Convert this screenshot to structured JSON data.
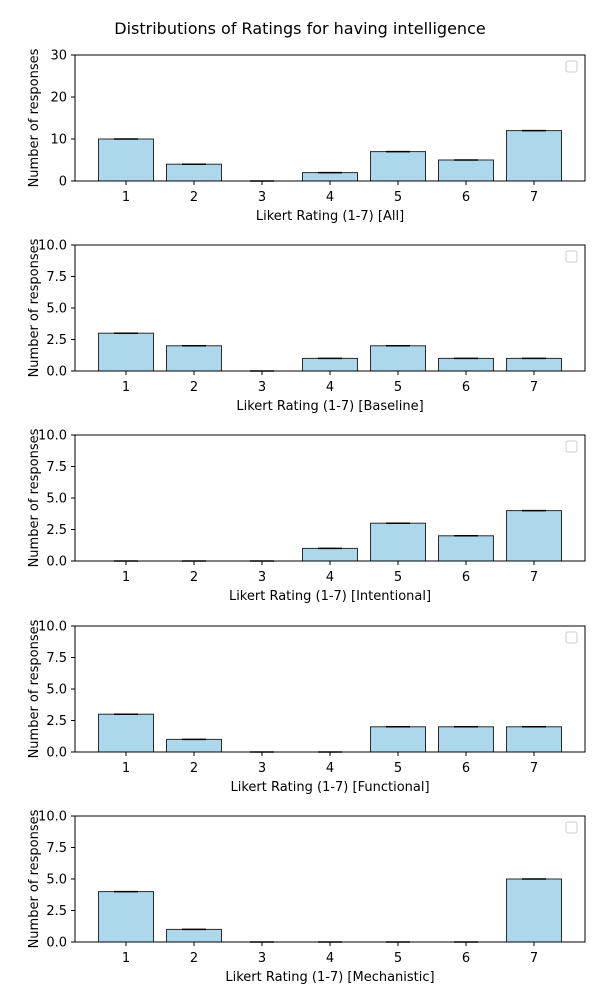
{
  "figure": {
    "title": "Distributions of Ratings for having intelligence"
  },
  "style": {
    "bar_fill": "#add8ec",
    "bar_edge": "#2b2b2b",
    "axis_color": "#000000"
  },
  "chart_data": [
    {
      "type": "bar",
      "title": "",
      "xlabel": "Likert Rating (1-7) [All]",
      "ylabel": "Number of responses",
      "categories": [
        "1",
        "2",
        "3",
        "4",
        "5",
        "6",
        "7"
      ],
      "values": [
        10,
        4,
        0,
        2,
        7,
        5,
        12
      ],
      "ylim": [
        0,
        30
      ],
      "yticks": [
        "0",
        "10",
        "20",
        "30"
      ],
      "legend": "top-right (empty)",
      "grid": false
    },
    {
      "type": "bar",
      "title": "",
      "xlabel": "Likert Rating (1-7) [Baseline]",
      "ylabel": "Number of responses",
      "categories": [
        "1",
        "2",
        "3",
        "4",
        "5",
        "6",
        "7"
      ],
      "values": [
        3,
        2,
        0,
        1,
        2,
        1,
        1
      ],
      "ylim": [
        0,
        10
      ],
      "yticks": [
        "0.0",
        "2.5",
        "5.0",
        "7.5",
        "10.0"
      ],
      "legend": "top-right (empty)",
      "grid": false
    },
    {
      "type": "bar",
      "title": "",
      "xlabel": "Likert Rating (1-7) [Intentional]",
      "ylabel": "Number of responses",
      "categories": [
        "1",
        "2",
        "3",
        "4",
        "5",
        "6",
        "7"
      ],
      "values": [
        0,
        0,
        0,
        1,
        3,
        2,
        4
      ],
      "ylim": [
        0,
        10
      ],
      "yticks": [
        "0.0",
        "2.5",
        "5.0",
        "7.5",
        "10.0"
      ],
      "legend": "top-right (empty)",
      "grid": false
    },
    {
      "type": "bar",
      "title": "",
      "xlabel": "Likert Rating (1-7) [Functional]",
      "ylabel": "Number of responses",
      "categories": [
        "1",
        "2",
        "3",
        "4",
        "5",
        "6",
        "7"
      ],
      "values": [
        3,
        1,
        0,
        0,
        2,
        2,
        2
      ],
      "ylim": [
        0,
        10
      ],
      "yticks": [
        "0.0",
        "2.5",
        "5.0",
        "7.5",
        "10.0"
      ],
      "legend": "top-right (empty)",
      "grid": false
    },
    {
      "type": "bar",
      "title": "",
      "xlabel": "Likert Rating (1-7) [Mechanistic]",
      "ylabel": "Number of responses",
      "categories": [
        "1",
        "2",
        "3",
        "4",
        "5",
        "6",
        "7"
      ],
      "values": [
        4,
        1,
        0,
        0,
        0,
        0,
        5
      ],
      "ylim": [
        0,
        10
      ],
      "yticks": [
        "0.0",
        "2.5",
        "5.0",
        "7.5",
        "10.0"
      ],
      "legend": "top-right (empty)",
      "grid": false
    }
  ]
}
